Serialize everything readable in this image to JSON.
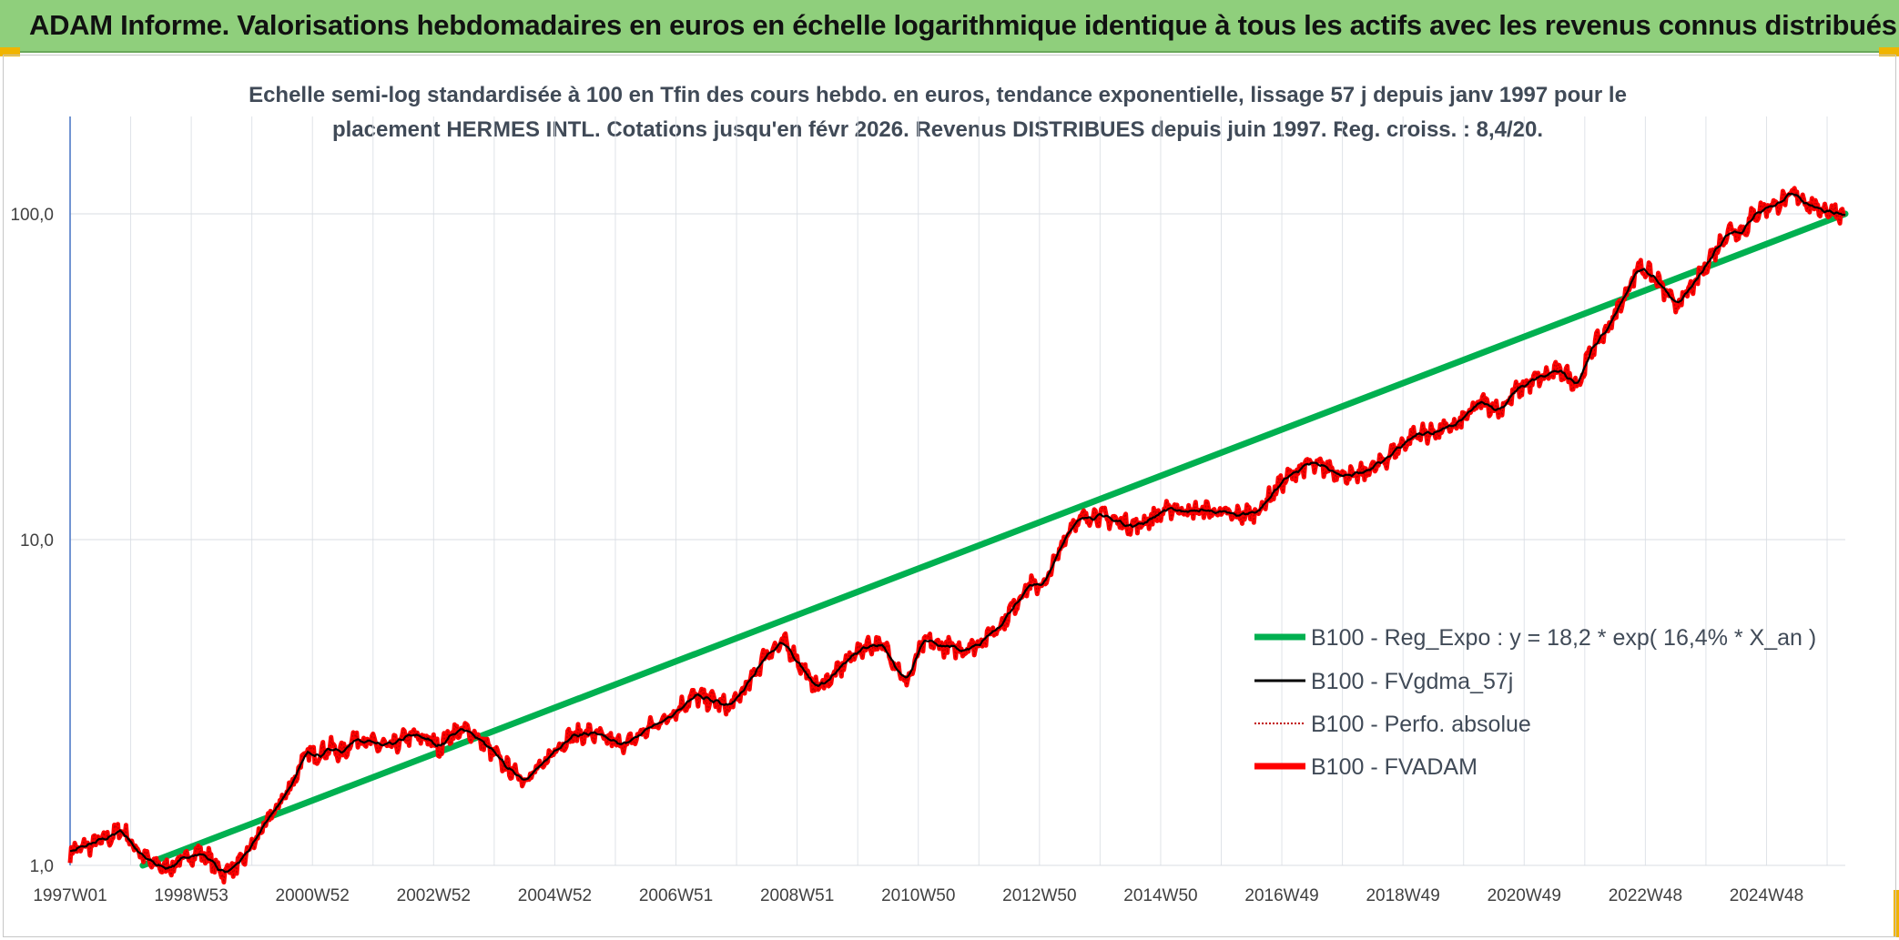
{
  "header": {
    "title": "ADAM Informe. Valorisations hebdomadaires en euros en échelle logarithmique identique à tous les actifs avec les revenus connus distribués"
  },
  "colors": {
    "header_bg": "#8fcf7c",
    "regression": "#00b050",
    "smoothed": "#000000",
    "perfo": "#c00000",
    "fvadam": "#ff0000",
    "corner_accent": "#f0b400"
  },
  "chart_data": {
    "type": "line",
    "title_line1": "Echelle semi-log standardisée à 100 en Tfin des cours hebdo. en euros, tendance exponentielle, lissage 57 j depuis janv 1997 pour le",
    "title_line2": "placement HERMES INTL. Cotations jusqu'en févr 2026. Revenus DISTRIBUES depuis juin 1997. Reg. croiss. : 8,4/20.",
    "yscale": "log",
    "ylim": [
      1,
      200
    ],
    "y_ticks": [
      1,
      10,
      100
    ],
    "y_tick_labels": [
      "1,0",
      "10,0",
      "100,0"
    ],
    "x_tick_labels": [
      "1997W01",
      "1998W53",
      "2000W52",
      "2002W52",
      "2004W52",
      "2006W51",
      "2008W51",
      "2010W50",
      "2012W50",
      "2014W50",
      "2016W49",
      "2018W49",
      "2020W49",
      "2022W48",
      "2024W48"
    ],
    "x_tick_years": [
      1997.0,
      1999.0,
      2001.0,
      2003.0,
      2005.0,
      2007.0,
      2009.0,
      2011.0,
      2013.0,
      2015.0,
      2017.0,
      2019.0,
      2021.0,
      2023.0,
      2025.0
    ],
    "xlim": [
      1997.0,
      2026.3
    ],
    "grid": true,
    "legend_position": "bottom-right",
    "series": [
      {
        "name": "B100 - Reg_Expo : y = 18,2 * exp( 16,4% *  X_an )",
        "type": "regression",
        "start": [
          1998.2,
          1.0
        ],
        "end": [
          2026.3,
          100.0
        ]
      },
      {
        "name": "B100 - FVgdma_57j",
        "type": "smoothed"
      },
      {
        "name": "B100 - Perfo. absolue",
        "type": "dotted"
      },
      {
        "name": "B100 - FVADAM",
        "type": "main",
        "x": [
          1997.0,
          1997.3,
          1997.6,
          1997.85,
          1998.0,
          1998.3,
          1998.6,
          1998.9,
          1999.1,
          1999.3,
          1999.5,
          1999.8,
          2000.0,
          2000.3,
          2000.6,
          2000.9,
          2001.1,
          2001.3,
          2001.5,
          2001.7,
          2002.0,
          2002.3,
          2002.6,
          2002.9,
          2003.1,
          2003.3,
          2003.6,
          2003.9,
          2004.2,
          2004.5,
          2004.8,
          2005.0,
          2005.3,
          2005.6,
          2005.9,
          2006.2,
          2006.5,
          2006.8,
          2007.0,
          2007.3,
          2007.6,
          2007.9,
          2008.2,
          2008.5,
          2008.8,
          2009.0,
          2009.3,
          2009.6,
          2009.9,
          2010.2,
          2010.5,
          2010.8,
          2011.1,
          2011.4,
          2011.7,
          2012.0,
          2012.4,
          2012.8,
          2013.1,
          2013.5,
          2013.9,
          2014.2,
          2014.6,
          2014.9,
          2015.2,
          2015.5,
          2015.8,
          2016.2,
          2016.6,
          2017.0,
          2017.4,
          2017.8,
          2018.2,
          2018.6,
          2018.9,
          2019.2,
          2019.6,
          2019.9,
          2020.3,
          2020.6,
          2020.9,
          2021.2,
          2021.6,
          2021.9,
          2022.1,
          2022.4,
          2022.7,
          2022.9,
          2023.2,
          2023.5,
          2023.8,
          2024.1,
          2024.4,
          2024.6,
          2024.8,
          2025.0,
          2025.2,
          2025.5,
          2025.8,
          2026.0,
          2026.3
        ],
        "y": [
          1.1,
          1.15,
          1.2,
          1.3,
          1.18,
          1.02,
          0.98,
          1.05,
          1.1,
          1.05,
          0.95,
          1.0,
          1.15,
          1.4,
          1.7,
          2.2,
          2.2,
          2.3,
          2.2,
          2.5,
          2.35,
          2.3,
          2.5,
          2.45,
          2.3,
          2.55,
          2.6,
          2.3,
          2.0,
          1.85,
          2.0,
          2.3,
          2.5,
          2.55,
          2.4,
          2.35,
          2.6,
          2.8,
          3.0,
          3.3,
          3.2,
          3.05,
          3.6,
          4.5,
          4.8,
          4.3,
          3.5,
          3.8,
          4.4,
          4.8,
          4.6,
          3.6,
          4.9,
          4.7,
          4.6,
          4.8,
          5.6,
          7.2,
          7.3,
          11.0,
          12.0,
          11.5,
          11.0,
          11.8,
          12.5,
          12.2,
          12.3,
          11.8,
          12.2,
          15.0,
          17.0,
          16.5,
          15.5,
          17.0,
          19.0,
          21.0,
          21.5,
          22.5,
          26.5,
          25.0,
          29.0,
          31.0,
          33.0,
          30.0,
          38.0,
          45.0,
          58.0,
          70.0,
          62.0,
          52.0,
          60.0,
          75.0,
          90.0,
          88.0,
          100.0,
          105.0,
          108.0,
          115.0,
          104.0,
          103.0,
          100.0
        ]
      }
    ]
  }
}
